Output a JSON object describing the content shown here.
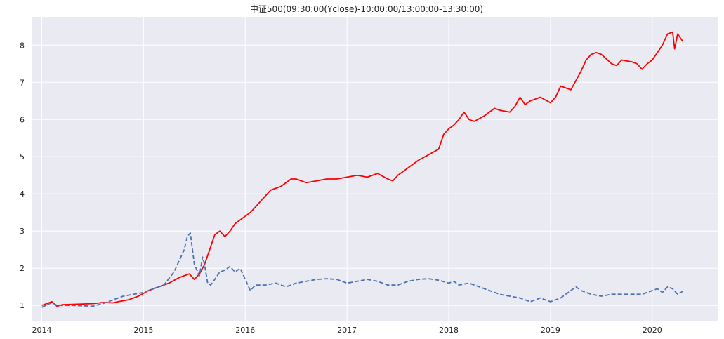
{
  "chart_data": {
    "type": "line",
    "title": "中证500(09:30:00(Yclose)-10:00:00/13:00:00-13:30:00)",
    "xlabel": "",
    "ylabel": "",
    "x_tick_labels": [
      "2014",
      "2015",
      "2016",
      "2017",
      "2018",
      "2019",
      "2020"
    ],
    "y_tick_labels": [
      "1",
      "2",
      "3",
      "4",
      "5",
      "6",
      "7",
      "8"
    ],
    "xlim": [
      2013.9,
      2020.65
    ],
    "ylim": [
      0.57,
      8.76
    ],
    "grid": true,
    "background": "#eaeaf2",
    "series": [
      {
        "color": "#ff0000",
        "style": "solid",
        "x": [
          2014.0,
          2014.1,
          2014.15,
          2014.2,
          2014.3,
          2014.4,
          2014.5,
          2014.6,
          2014.7,
          2014.75,
          2014.85,
          2014.95,
          2015.05,
          2015.15,
          2015.25,
          2015.35,
          2015.45,
          2015.5,
          2015.55,
          2015.6,
          2015.65,
          2015.7,
          2015.75,
          2015.8,
          2015.85,
          2015.9,
          2015.95,
          2016.05,
          2016.1,
          2016.15,
          2016.2,
          2016.25,
          2016.35,
          2016.45,
          2016.5,
          2016.6,
          2016.7,
          2016.8,
          2016.9,
          2017.0,
          2017.1,
          2017.2,
          2017.3,
          2017.4,
          2017.45,
          2017.5,
          2017.6,
          2017.7,
          2017.8,
          2017.9,
          2017.95,
          2018.0,
          2018.05,
          2018.1,
          2018.15,
          2018.2,
          2018.25,
          2018.35,
          2018.45,
          2018.5,
          2018.6,
          2018.65,
          2018.7,
          2018.75,
          2018.8,
          2018.9,
          2019.0,
          2019.05,
          2019.1,
          2019.2,
          2019.3,
          2019.35,
          2019.4,
          2019.45,
          2019.5,
          2019.6,
          2019.65,
          2019.7,
          2019.8,
          2019.85,
          2019.9,
          2019.95,
          2020.0,
          2020.05,
          2020.1,
          2020.15,
          2020.2,
          2020.22,
          2020.25,
          2020.3
        ],
        "y": [
          1.0,
          1.1,
          0.98,
          1.02,
          1.03,
          1.04,
          1.05,
          1.08,
          1.07,
          1.1,
          1.15,
          1.25,
          1.4,
          1.5,
          1.6,
          1.75,
          1.85,
          1.7,
          1.85,
          2.1,
          2.5,
          2.9,
          3.0,
          2.85,
          3.0,
          3.2,
          3.3,
          3.5,
          3.65,
          3.8,
          3.95,
          4.1,
          4.2,
          4.4,
          4.4,
          4.3,
          4.35,
          4.4,
          4.4,
          4.45,
          4.5,
          4.45,
          4.55,
          4.4,
          4.35,
          4.5,
          4.7,
          4.9,
          5.05,
          5.2,
          5.6,
          5.75,
          5.85,
          6.0,
          6.2,
          6.0,
          5.95,
          6.1,
          6.3,
          6.25,
          6.2,
          6.35,
          6.6,
          6.4,
          6.5,
          6.6,
          6.45,
          6.6,
          6.9,
          6.8,
          7.3,
          7.6,
          7.75,
          7.8,
          7.75,
          7.5,
          7.45,
          7.6,
          7.55,
          7.5,
          7.35,
          7.5,
          7.6,
          7.8,
          8.0,
          8.3,
          8.35,
          7.9,
          8.3,
          8.1
        ]
      },
      {
        "color": "#4c72b0",
        "style": "dashed",
        "x": [
          2014.0,
          2014.1,
          2014.15,
          2014.3,
          2014.5,
          2014.6,
          2014.7,
          2014.8,
          2014.9,
          2015.0,
          2015.1,
          2015.2,
          2015.3,
          2015.35,
          2015.4,
          2015.43,
          2015.46,
          2015.5,
          2015.55,
          2015.58,
          2015.6,
          2015.63,
          2015.66,
          2015.7,
          2015.75,
          2015.8,
          2015.85,
          2015.9,
          2015.95,
          2016.0,
          2016.05,
          2016.1,
          2016.2,
          2016.3,
          2016.4,
          2016.5,
          2016.6,
          2016.7,
          2016.8,
          2016.9,
          2017.0,
          2017.1,
          2017.2,
          2017.3,
          2017.4,
          2017.5,
          2017.6,
          2017.7,
          2017.8,
          2017.9,
          2018.0,
          2018.05,
          2018.1,
          2018.2,
          2018.3,
          2018.4,
          2018.5,
          2018.6,
          2018.7,
          2018.8,
          2018.9,
          2019.0,
          2019.1,
          2019.2,
          2019.25,
          2019.3,
          2019.4,
          2019.5,
          2019.6,
          2019.7,
          2019.8,
          2019.9,
          2020.0,
          2020.05,
          2020.1,
          2020.15,
          2020.2,
          2020.25,
          2020.3
        ],
        "y": [
          0.95,
          1.08,
          1.0,
          1.0,
          0.98,
          1.05,
          1.15,
          1.25,
          1.3,
          1.35,
          1.45,
          1.55,
          1.9,
          2.2,
          2.5,
          2.85,
          2.95,
          2.1,
          1.8,
          2.3,
          2.1,
          1.6,
          1.55,
          1.7,
          1.9,
          1.95,
          2.05,
          1.9,
          2.0,
          1.7,
          1.4,
          1.55,
          1.55,
          1.6,
          1.5,
          1.6,
          1.65,
          1.7,
          1.72,
          1.7,
          1.6,
          1.65,
          1.7,
          1.65,
          1.55,
          1.55,
          1.65,
          1.7,
          1.72,
          1.68,
          1.6,
          1.65,
          1.55,
          1.6,
          1.5,
          1.4,
          1.3,
          1.25,
          1.2,
          1.1,
          1.2,
          1.1,
          1.2,
          1.4,
          1.5,
          1.4,
          1.3,
          1.25,
          1.3,
          1.3,
          1.3,
          1.3,
          1.4,
          1.45,
          1.35,
          1.5,
          1.45,
          1.3,
          1.38
        ]
      }
    ]
  }
}
